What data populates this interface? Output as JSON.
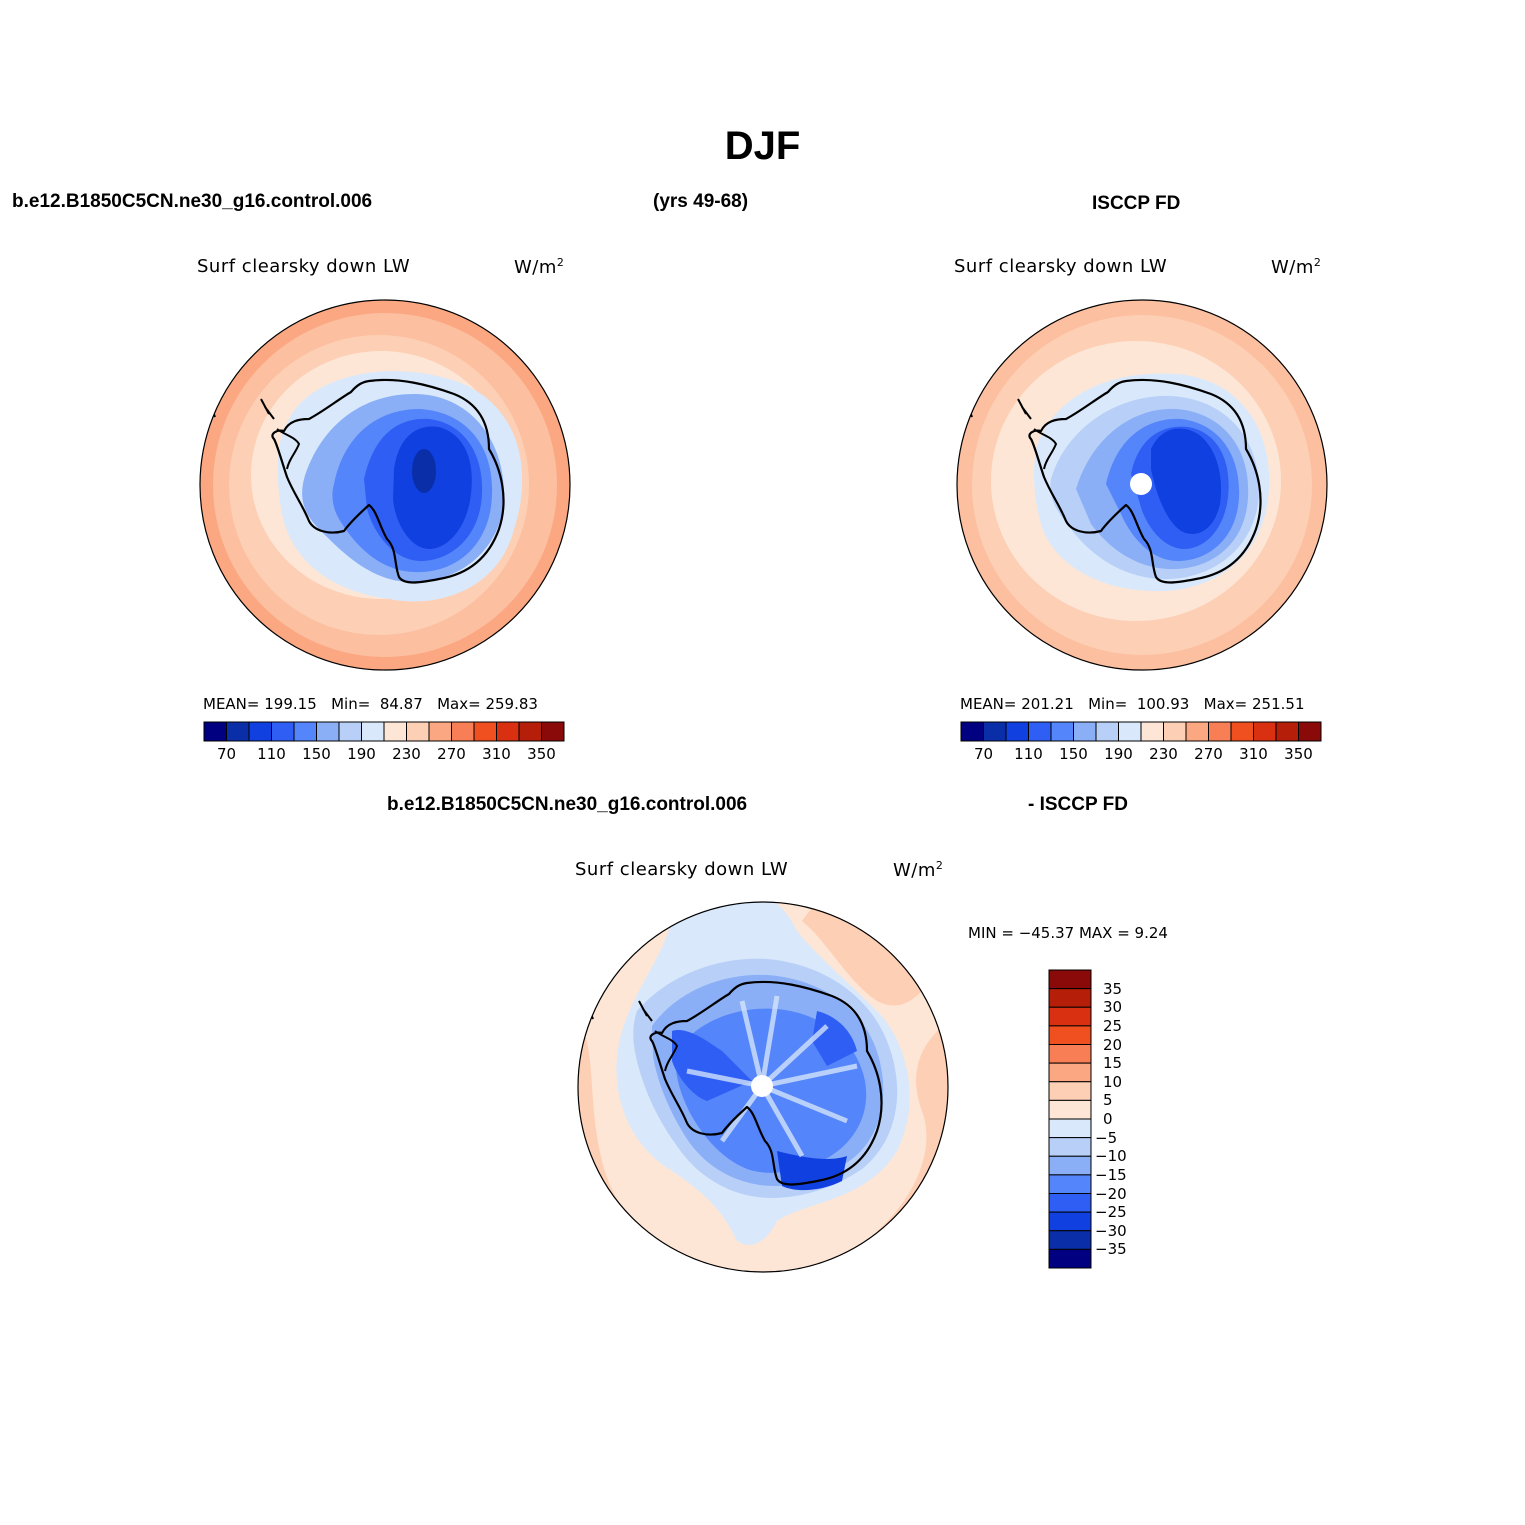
{
  "header": {
    "season": "DJF",
    "case_name": "b.e12.B1850C5CN.ne30_g16.control.006",
    "years": "(yrs 49-68)",
    "obs_name": "ISCCP FD"
  },
  "panels": [
    {
      "id": "model",
      "variable": "Surf  clearsky  down  LW",
      "units": "W/m",
      "units_sup": "2",
      "stats": {
        "mean_label": "MEAN=",
        "mean": "199.15",
        "min_label": "Min=",
        "min": "84.87",
        "max_label": "Max=",
        "max": "259.83"
      }
    },
    {
      "id": "obs",
      "variable": "Surf  clearsky  down  LW",
      "units": "W/m",
      "units_sup": "2",
      "stats": {
        "mean_label": "MEAN=",
        "mean": "201.21",
        "min_label": "Min=",
        "min": "100.93",
        "max_label": "Max=",
        "max": "251.51"
      }
    },
    {
      "id": "diff",
      "title_left": "b.e12.B1850C5CN.ne30_g16.control.006",
      "title_right": "- ISCCP FD",
      "variable": "Surf  clearsky  down  LW",
      "units": "W/m",
      "units_sup": "2",
      "stats_text": "MIN = −45.37  MAX =     9.24"
    }
  ],
  "colorbar_abs": {
    "labels": [
      "70",
      "110",
      "150",
      "190",
      "230",
      "270",
      "310",
      "350"
    ],
    "colors": [
      "#000080",
      "#0a2ea8",
      "#1040e0",
      "#2f5ef5",
      "#5585fa",
      "#8aaff7",
      "#b8cff8",
      "#d9e9fb",
      "#fde6d6",
      "#fdcfb5",
      "#fba882",
      "#f87e55",
      "#f05020",
      "#d83010",
      "#b51e08",
      "#8a0a0a"
    ]
  },
  "colorbar_diff": {
    "labels": [
      "35",
      "30",
      "25",
      "20",
      "15",
      "10",
      "5",
      "0",
      "−5",
      "−10",
      "−15",
      "−20",
      "−25",
      "−30",
      "−35"
    ],
    "colors": [
      "#8a0a0a",
      "#b51e08",
      "#d83010",
      "#f05020",
      "#f87e55",
      "#fba882",
      "#fdcfb5",
      "#fde6d6",
      "#d9e9fb",
      "#b8cff8",
      "#8aaff7",
      "#5585fa",
      "#2f5ef5",
      "#1040e0",
      "#0a2ea8",
      "#000080"
    ]
  }
}
